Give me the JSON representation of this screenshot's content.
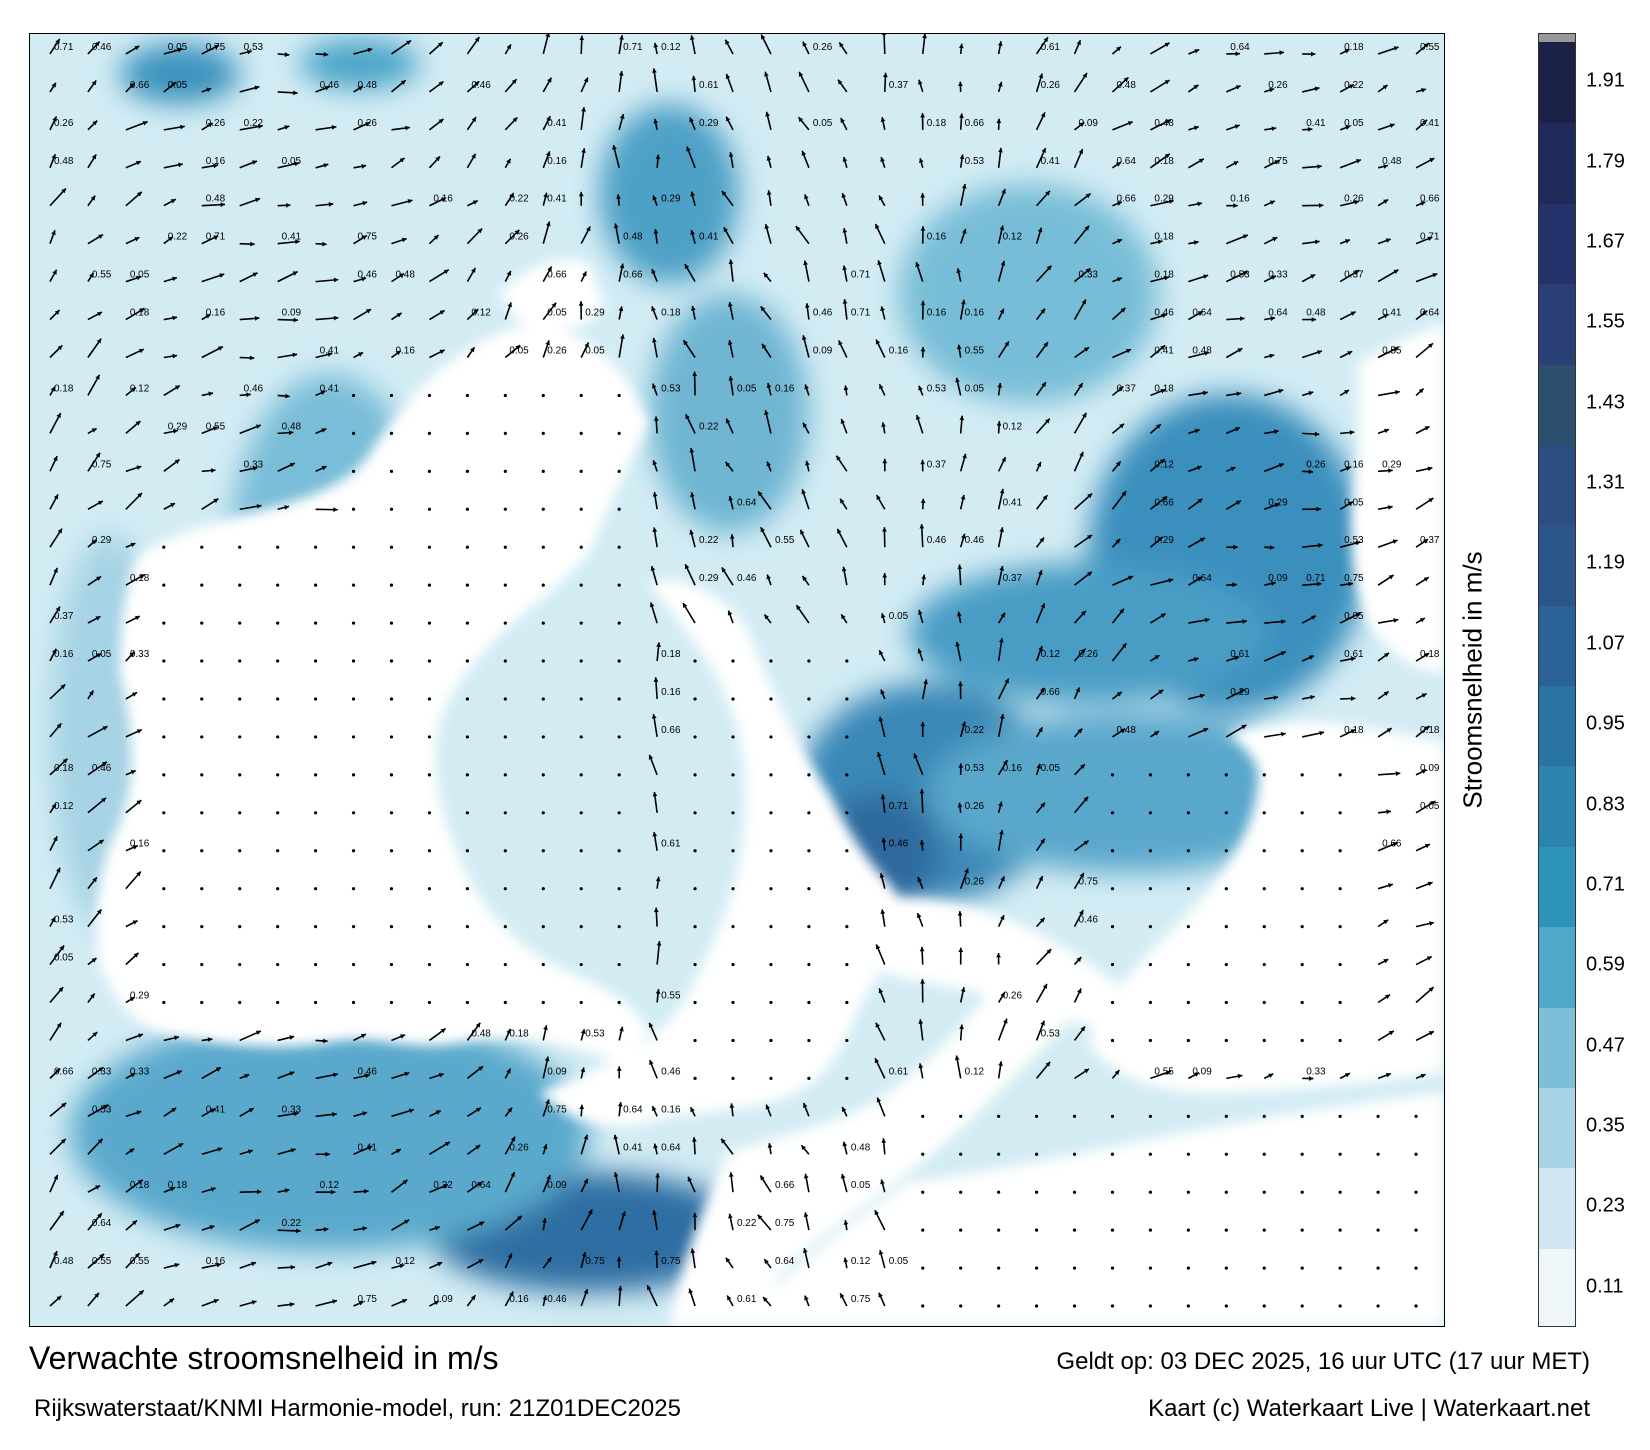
{
  "map": {
    "title": "Verwachte stroomsnelheid in m/s",
    "subtitle": "Rijkswaterstaat/KNMI Harmonie-model, run: 21Z01DEC2025",
    "valid_time": "Geldt op: 03 DEC 2025, 16 uur UTC (17 uur MET)",
    "credit": "Kaart (c) Waterkaart Live | Waterkaart.net",
    "land_color": "#ffffff",
    "arrow_color": "#000000"
  },
  "colorbar": {
    "label": "Stroomsnelheid in m/s",
    "ticks": [
      "0.11",
      "0.23",
      "0.35",
      "0.47",
      "0.59",
      "0.71",
      "0.83",
      "0.95",
      "1.07",
      "1.19",
      "1.31",
      "1.43",
      "1.55",
      "1.67",
      "1.79",
      "1.91"
    ],
    "colors": [
      "#eef6fa",
      "#cfe7f0",
      "#a7d4e4",
      "#7cbfd6",
      "#4ea8c7",
      "#2e93b9",
      "#2a84ae",
      "#2a74a4",
      "#2b6399",
      "#2c558c",
      "#2b4d80",
      "#2d4f6e",
      "#293f76",
      "#233369",
      "#1f2a5a",
      "#1b2147"
    ]
  },
  "sample_values": [
    "0.18",
    "0.29",
    "0.41",
    "0.64",
    "0.71",
    "0.55",
    "0.48",
    "0.22",
    "0.12",
    "0.05",
    "0.33",
    "0.75",
    "0.66",
    "0.37",
    "0.26",
    "0.16",
    "0.09",
    "0.46",
    "0.53",
    "0.61"
  ]
}
